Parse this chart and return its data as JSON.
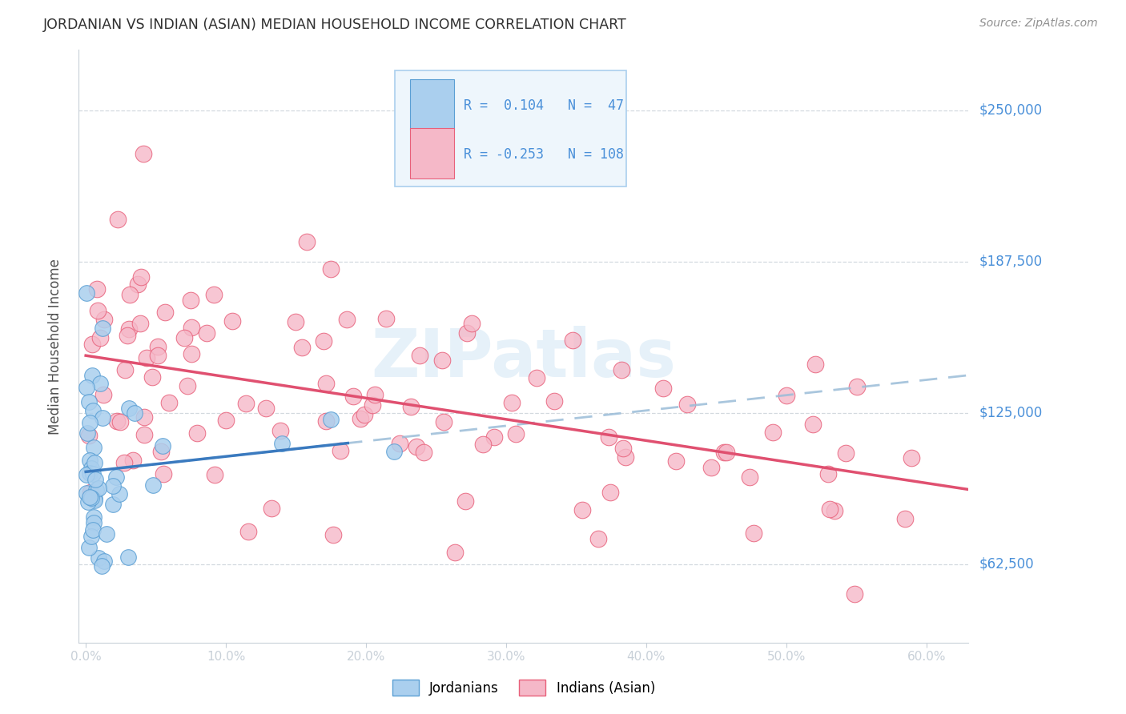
{
  "title": "JORDANIAN VS INDIAN (ASIAN) MEDIAN HOUSEHOLD INCOME CORRELATION CHART",
  "source": "Source: ZipAtlas.com",
  "ylabel": "Median Household Income",
  "xlabel_ticks": [
    "0.0%",
    "10.0%",
    "20.0%",
    "30.0%",
    "40.0%",
    "50.0%",
    "60.0%"
  ],
  "xlabel_vals": [
    0.0,
    10.0,
    20.0,
    30.0,
    40.0,
    50.0,
    60.0
  ],
  "yticks": [
    62500,
    125000,
    187500,
    250000
  ],
  "ytick_labels": [
    "$62,500",
    "$125,000",
    "$187,500",
    "$250,000"
  ],
  "ylim_low": 30000,
  "ylim_high": 275000,
  "xlim_low": -0.5,
  "xlim_high": 63.0,
  "jordanian_color": "#aacfee",
  "jordanian_edge": "#5a9fd4",
  "indian_color": "#f5b8c8",
  "indian_edge": "#e8607a",
  "trend_jordanian_color": "#3a7abf",
  "trend_indian_color": "#e05070",
  "trend_dashed_color": "#9abcd8",
  "watermark_color": "#b8d8ee",
  "R_jordanian": 0.104,
  "N_jordanian": 47,
  "R_indian": -0.253,
  "N_indian": 108,
  "background_color": "#ffffff",
  "grid_color": "#c8d0d8",
  "title_color": "#303030",
  "axis_label_color": "#505050",
  "ytick_label_color": "#4a90d9",
  "source_color": "#909090",
  "legend_R_color": "#303030",
  "legend_val_color": "#4a90d9",
  "legend_box_facecolor": "#eef6fc",
  "legend_box_edgecolor": "#aacfee"
}
